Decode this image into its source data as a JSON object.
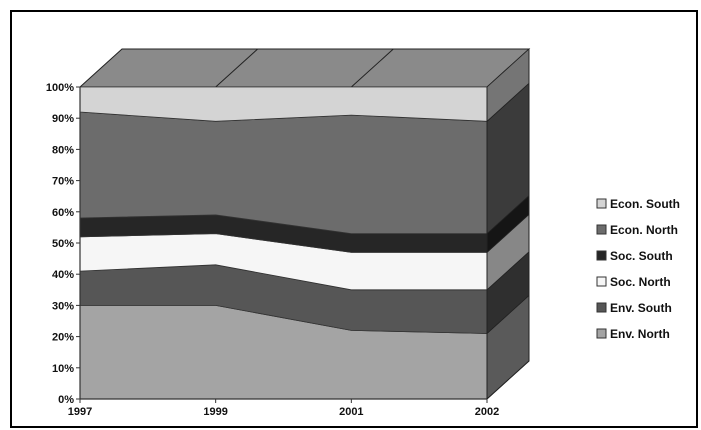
{
  "chart_data": {
    "type": "area",
    "stacked": "100%",
    "three_d": true,
    "title": "",
    "xlabel": "",
    "ylabel": "",
    "categories": [
      "1997",
      "1999",
      "2001",
      "2002"
    ],
    "ylim": [
      0,
      100
    ],
    "y_ticks": [
      "0%",
      "10%",
      "20%",
      "30%",
      "40%",
      "50%",
      "60%",
      "70%",
      "80%",
      "90%",
      "100%"
    ],
    "legend_position": "right",
    "series": [
      {
        "name": "Env. North",
        "values": [
          30,
          30,
          22,
          21
        ],
        "color": "#a4a4a4"
      },
      {
        "name": "Env. South",
        "values": [
          11,
          13,
          13,
          14
        ],
        "color": "#565656"
      },
      {
        "name": "Soc. North",
        "values": [
          11,
          10,
          12,
          12
        ],
        "color": "#f6f6f6"
      },
      {
        "name": "Soc. South",
        "values": [
          6,
          6,
          6,
          6
        ],
        "color": "#262626"
      },
      {
        "name": "Econ. North",
        "values": [
          34,
          30,
          38,
          36
        ],
        "color": "#6c6c6c"
      },
      {
        "name": "Econ. South",
        "values": [
          8,
          11,
          9,
          11
        ],
        "color": "#d4d4d4"
      }
    ],
    "legend_order": [
      "Econ. South",
      "Econ. North",
      "Soc. South",
      "Soc. North",
      "Env. South",
      "Env. North"
    ],
    "top_color": "#8a8a8a"
  }
}
